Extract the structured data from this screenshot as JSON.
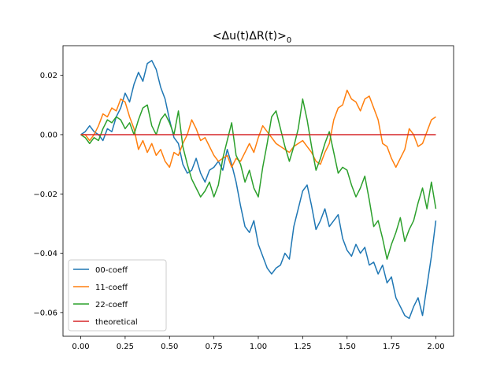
{
  "chart_data": {
    "type": "line",
    "title": "$<\\Delta u(t) \\Delta R(t)>_0$",
    "title_display": {
      "main": "<Δu(t)ΔR(t)>",
      "subscript": "0"
    },
    "xlabel": "",
    "ylabel": "",
    "xlim": [
      -0.1,
      2.1
    ],
    "ylim": [
      -0.068,
      0.03
    ],
    "xticks": [
      0.0,
      0.25,
      0.5,
      0.75,
      1.0,
      1.25,
      1.5,
      1.75,
      2.0
    ],
    "xtick_labels": [
      "0.00",
      "0.25",
      "0.50",
      "0.75",
      "1.00",
      "1.25",
      "1.50",
      "1.75",
      "2.00"
    ],
    "yticks": [
      0.02,
      0.0,
      -0.02,
      -0.04,
      -0.06
    ],
    "ytick_labels": [
      "0.02",
      "0.00",
      "−0.02",
      "−0.04",
      "−0.06"
    ],
    "grid": false,
    "legend_position": "lower-left",
    "series": [
      {
        "name": "00-coeff",
        "color": "#1f77b4",
        "x": [
          0.0,
          0.025,
          0.05,
          0.075,
          0.1,
          0.125,
          0.15,
          0.175,
          0.2,
          0.225,
          0.25,
          0.275,
          0.3,
          0.325,
          0.35,
          0.375,
          0.4,
          0.425,
          0.45,
          0.475,
          0.5,
          0.525,
          0.55,
          0.575,
          0.6,
          0.625,
          0.65,
          0.675,
          0.7,
          0.725,
          0.75,
          0.775,
          0.8,
          0.825,
          0.85,
          0.875,
          0.9,
          0.925,
          0.95,
          0.975,
          1.0,
          1.025,
          1.05,
          1.075,
          1.1,
          1.125,
          1.15,
          1.175,
          1.2,
          1.225,
          1.25,
          1.275,
          1.3,
          1.325,
          1.35,
          1.375,
          1.4,
          1.425,
          1.45,
          1.475,
          1.5,
          1.525,
          1.55,
          1.575,
          1.6,
          1.625,
          1.65,
          1.675,
          1.7,
          1.725,
          1.75,
          1.775,
          1.8,
          1.825,
          1.85,
          1.875,
          1.9,
          1.925,
          1.95,
          1.975,
          2.0
        ],
        "y": [
          0.0,
          0.001,
          0.003,
          0.001,
          0.0,
          -0.002,
          0.002,
          0.001,
          0.006,
          0.009,
          0.014,
          0.011,
          0.017,
          0.021,
          0.018,
          0.024,
          0.025,
          0.022,
          0.016,
          0.012,
          0.005,
          -0.001,
          -0.003,
          -0.01,
          -0.013,
          -0.012,
          -0.008,
          -0.013,
          -0.016,
          -0.012,
          -0.011,
          -0.009,
          -0.012,
          -0.005,
          -0.01,
          -0.016,
          -0.024,
          -0.031,
          -0.033,
          -0.029,
          -0.037,
          -0.041,
          -0.045,
          -0.047,
          -0.045,
          -0.044,
          -0.04,
          -0.042,
          -0.031,
          -0.025,
          -0.019,
          -0.017,
          -0.024,
          -0.032,
          -0.029,
          -0.025,
          -0.031,
          -0.029,
          -0.027,
          -0.035,
          -0.039,
          -0.041,
          -0.037,
          -0.04,
          -0.038,
          -0.044,
          -0.043,
          -0.047,
          -0.044,
          -0.05,
          -0.048,
          -0.055,
          -0.058,
          -0.061,
          -0.062,
          -0.058,
          -0.055,
          -0.061,
          -0.051,
          -0.041,
          -0.029
        ]
      },
      {
        "name": "11-coeff",
        "color": "#ff7f0e",
        "x": [
          0.0,
          0.025,
          0.05,
          0.075,
          0.1,
          0.125,
          0.15,
          0.175,
          0.2,
          0.225,
          0.25,
          0.275,
          0.3,
          0.325,
          0.35,
          0.375,
          0.4,
          0.425,
          0.45,
          0.475,
          0.5,
          0.525,
          0.55,
          0.575,
          0.6,
          0.625,
          0.65,
          0.675,
          0.7,
          0.725,
          0.75,
          0.775,
          0.8,
          0.825,
          0.85,
          0.875,
          0.9,
          0.925,
          0.95,
          0.975,
          1.0,
          1.025,
          1.05,
          1.075,
          1.1,
          1.125,
          1.15,
          1.175,
          1.2,
          1.225,
          1.25,
          1.275,
          1.3,
          1.325,
          1.35,
          1.375,
          1.4,
          1.425,
          1.45,
          1.475,
          1.5,
          1.525,
          1.55,
          1.575,
          1.6,
          1.625,
          1.65,
          1.675,
          1.7,
          1.725,
          1.75,
          1.775,
          1.8,
          1.825,
          1.85,
          1.875,
          1.9,
          1.925,
          1.95,
          1.975,
          2.0
        ],
        "y": [
          0.0,
          0.0,
          -0.002,
          0.0,
          0.003,
          0.007,
          0.006,
          0.009,
          0.008,
          0.012,
          0.011,
          0.006,
          0.002,
          -0.005,
          -0.002,
          -0.006,
          -0.003,
          -0.007,
          -0.005,
          -0.009,
          -0.011,
          -0.006,
          -0.007,
          -0.003,
          0.0,
          0.005,
          0.002,
          -0.002,
          -0.001,
          -0.004,
          -0.007,
          -0.009,
          -0.008,
          -0.007,
          -0.011,
          -0.008,
          -0.009,
          -0.006,
          -0.003,
          -0.006,
          -0.001,
          0.003,
          0.001,
          -0.001,
          -0.003,
          -0.004,
          -0.005,
          -0.006,
          -0.004,
          -0.003,
          -0.002,
          -0.004,
          -0.006,
          -0.009,
          -0.01,
          -0.006,
          -0.003,
          0.005,
          0.009,
          0.01,
          0.015,
          0.012,
          0.011,
          0.008,
          0.012,
          0.013,
          0.009,
          0.005,
          -0.003,
          -0.004,
          -0.008,
          -0.011,
          -0.008,
          -0.005,
          0.002,
          0.0,
          -0.004,
          -0.003,
          0.001,
          0.005,
          0.006
        ]
      },
      {
        "name": "22-coeff",
        "color": "#2ca02c",
        "x": [
          0.0,
          0.025,
          0.05,
          0.075,
          0.1,
          0.125,
          0.15,
          0.175,
          0.2,
          0.225,
          0.25,
          0.275,
          0.3,
          0.325,
          0.35,
          0.375,
          0.4,
          0.425,
          0.45,
          0.475,
          0.5,
          0.525,
          0.55,
          0.575,
          0.6,
          0.625,
          0.65,
          0.675,
          0.7,
          0.725,
          0.75,
          0.775,
          0.8,
          0.825,
          0.85,
          0.875,
          0.9,
          0.925,
          0.95,
          0.975,
          1.0,
          1.025,
          1.05,
          1.075,
          1.1,
          1.125,
          1.15,
          1.175,
          1.2,
          1.225,
          1.25,
          1.275,
          1.3,
          1.325,
          1.35,
          1.375,
          1.4,
          1.425,
          1.45,
          1.475,
          1.5,
          1.525,
          1.55,
          1.575,
          1.6,
          1.625,
          1.65,
          1.675,
          1.7,
          1.725,
          1.75,
          1.775,
          1.8,
          1.825,
          1.85,
          1.875,
          1.9,
          1.925,
          1.95,
          1.975,
          2.0
        ],
        "y": [
          0.0,
          -0.001,
          -0.003,
          -0.001,
          -0.002,
          0.002,
          0.005,
          0.004,
          0.006,
          0.005,
          0.002,
          0.004,
          0.0,
          0.005,
          0.009,
          0.01,
          0.003,
          0.0,
          0.005,
          0.007,
          0.004,
          0.0,
          0.008,
          -0.004,
          -0.01,
          -0.015,
          -0.018,
          -0.021,
          -0.019,
          -0.016,
          -0.021,
          -0.017,
          -0.008,
          -0.002,
          0.004,
          -0.007,
          -0.01,
          -0.016,
          -0.012,
          -0.018,
          -0.021,
          -0.011,
          -0.003,
          0.006,
          0.008,
          0.002,
          -0.004,
          -0.009,
          -0.004,
          0.002,
          0.012,
          0.005,
          -0.004,
          -0.012,
          -0.008,
          -0.003,
          0.001,
          -0.006,
          -0.013,
          -0.011,
          -0.012,
          -0.017,
          -0.021,
          -0.018,
          -0.014,
          -0.022,
          -0.031,
          -0.029,
          -0.035,
          -0.042,
          -0.037,
          -0.033,
          -0.028,
          -0.036,
          -0.032,
          -0.029,
          -0.023,
          -0.018,
          -0.025,
          -0.016,
          -0.025
        ]
      },
      {
        "name": "theoretical",
        "color": "#d62728",
        "x": [
          0.0,
          2.0
        ],
        "y": [
          0.0,
          0.0
        ]
      }
    ]
  }
}
